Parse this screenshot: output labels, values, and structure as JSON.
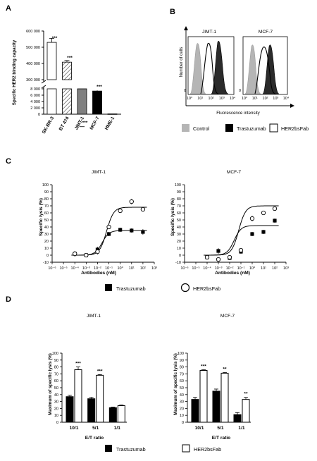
{
  "panels": {
    "A": "A",
    "B": "B",
    "C": "C",
    "D": "D"
  },
  "chart_data": [
    {
      "id": "A",
      "type": "bar",
      "ylabel": "Specific HER2 binding capacity",
      "categories": [
        "SK-BR-3",
        "BT 474",
        "JIMT-1",
        "MCF-7",
        "HME-1"
      ],
      "values": [
        530000,
        408000,
        9500,
        7300,
        100
      ],
      "errors": [
        25000,
        10000,
        400,
        200,
        50
      ],
      "significance": [
        "***",
        "***",
        "***",
        "***",
        ""
      ],
      "fills": [
        "#ffffff",
        "hatch",
        "#808080",
        "#000000",
        "#000000"
      ],
      "yaxis_break": [
        8000,
        300000
      ],
      "yticks_upper": [
        "300 000",
        "400 000",
        "500 000",
        "600 000"
      ],
      "yticks_lower": [
        "0",
        "2 000",
        "4 000",
        "6 000",
        "8 000"
      ]
    },
    {
      "id": "B",
      "type": "histogram",
      "panels": [
        "JIMT-1",
        "MCF-7"
      ],
      "ylabel": "Number of cells",
      "xlabel": "Fluorescence intensity",
      "y_tick": "0",
      "x_ticks": [
        "10°",
        "10¹",
        "10²",
        "10³",
        "10⁴"
      ],
      "legend": [
        "Control",
        "Trastuzumab",
        "HER2bsFab"
      ]
    },
    {
      "id": "C",
      "type": "scatter",
      "panels": [
        {
          "title": "JIMT-1",
          "series": [
            {
              "name": "Trastuzumab",
              "x": [
                -4,
                -3,
                -2,
                -1,
                0,
                1,
                2
              ],
              "y": [
                2,
                0,
                8,
                30,
                36,
                35,
                33
              ],
              "err": [
                4,
                3,
                4,
                3,
                3,
                3,
                4
              ]
            },
            {
              "name": "HER2bsFab",
              "x": [
                -4,
                -3,
                -2,
                -1,
                0,
                1,
                2
              ],
              "y": [
                2,
                0,
                5,
                40,
                63,
                76,
                65
              ],
              "err": [
                4,
                3,
                4,
                3,
                3,
                4,
                3
              ]
            }
          ],
          "fit_plateau": [
            35,
            68
          ]
        },
        {
          "title": "MCF-7",
          "series": [
            {
              "name": "Trastuzumab",
              "x": [
                -4,
                -3,
                -2,
                -1,
                0,
                1,
                2
              ],
              "y": [
                -3,
                6,
                -4,
                5,
                30,
                33,
                49
              ],
              "err": [
                3,
                4,
                3,
                3,
                3,
                3,
                3
              ]
            },
            {
              "name": "HER2bsFab",
              "x": [
                -4,
                -3,
                -2,
                -1,
                0,
                1,
                2
              ],
              "y": [
                -3,
                -6,
                -3,
                7,
                52,
                60,
                66
              ],
              "err": [
                3,
                3,
                3,
                3,
                4,
                3,
                3
              ]
            }
          ],
          "fit_plateau": [
            42,
            70
          ]
        }
      ],
      "ylabel": "Specific lysis (%)",
      "xlabel": "Antibodies (nM)",
      "yticks": [
        "-10",
        "0",
        "10",
        "20",
        "30",
        "40",
        "50",
        "60",
        "70",
        "80",
        "90",
        "100"
      ],
      "xticks": [
        "10⁻⁶",
        "10⁻⁵",
        "10⁻⁴",
        "10⁻³",
        "10⁻²",
        "10⁻¹",
        "10⁰",
        "10¹",
        "10²",
        "10³"
      ],
      "legend": [
        "Trastuzumab",
        "HER2bsFab"
      ]
    },
    {
      "id": "D",
      "type": "bar",
      "ylabel": "Maximum of specific lysis (%)",
      "xlabel": "E/T ratio",
      "categories": [
        "10/1",
        "5/1",
        "1/1"
      ],
      "yticks": [
        "0",
        "10",
        "20",
        "30",
        "40",
        "50",
        "60",
        "70",
        "80",
        "90",
        "100"
      ],
      "panels": [
        {
          "title": "JIMT-1",
          "series": [
            {
              "name": "Trastuzumab",
              "values": [
                37,
                34,
                21
              ],
              "errors": [
                2,
                2,
                1
              ]
            },
            {
              "name": "HER2bsFab",
              "values": [
                76,
                68,
                24
              ],
              "errors": [
                4,
                1,
                1
              ]
            }
          ],
          "significance": [
            "***",
            "***",
            ""
          ]
        },
        {
          "title": "MCF-7",
          "series": [
            {
              "name": "Trastuzumab",
              "values": [
                33,
                45,
                11
              ],
              "errors": [
                3,
                3,
                3
              ]
            },
            {
              "name": "HER2bsFab",
              "values": [
                75,
                71,
                33
              ],
              "errors": [
                1,
                1,
                3
              ]
            }
          ],
          "significance": [
            "***",
            "**",
            "**"
          ]
        }
      ],
      "legend": [
        "Trastuzumab",
        "HER2bsFab"
      ]
    }
  ]
}
